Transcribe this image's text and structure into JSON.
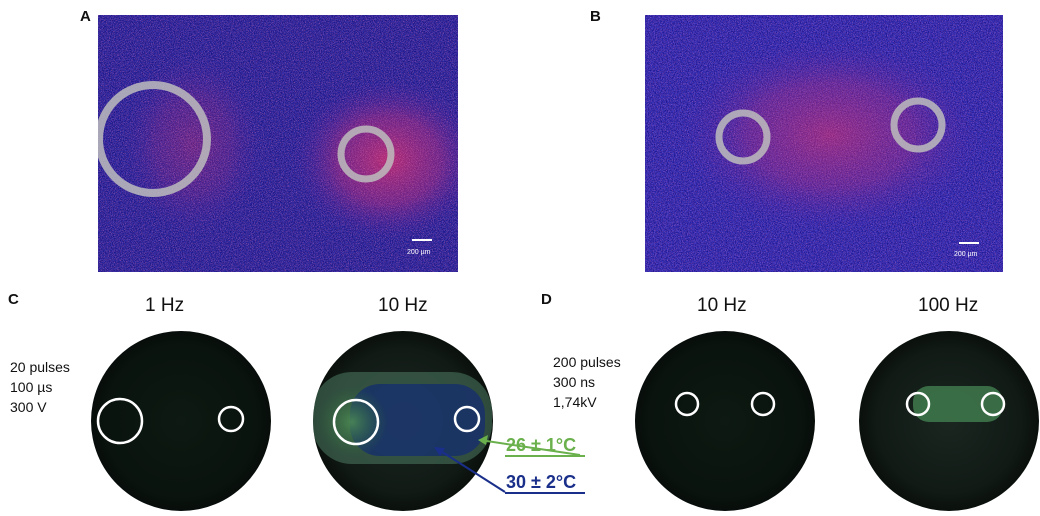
{
  "panels": {
    "a": {
      "letter": "A",
      "scale_label": "200 µm"
    },
    "b": {
      "letter": "B",
      "scale_label": "200 µm"
    },
    "c": {
      "letter": "C",
      "params": [
        "20 pulses",
        "100 µs",
        "300 V"
      ],
      "dish1_label": "1 Hz",
      "dish2_label": "10 Hz",
      "temp_green": "26 ± 1°C",
      "temp_blue": "30 ± 2°C"
    },
    "d": {
      "letter": "D",
      "params": [
        "200 pulses",
        "300 ns",
        "1,74kV"
      ],
      "dish1_label": "10 Hz",
      "dish2_label": "100 Hz"
    }
  },
  "colors": {
    "tissue_blue": "#2a20b8",
    "signal_magenta": "#e0306a",
    "temp_green": "#6ab04c",
    "temp_blue": "#1a2f8a",
    "dish_dark": "#0b140f"
  }
}
